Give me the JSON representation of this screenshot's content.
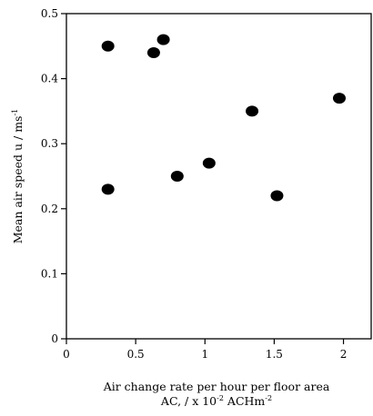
{
  "chart_data": {
    "type": "scatter",
    "title": "",
    "xlabel_line1": "Air change rate per hour per floor area",
    "xlabel_line2": "AC, / x 10",
    "xlabel_line2_sup": "-2",
    "xlabel_line2_unit": " ACHm",
    "xlabel_line2_unit_sup": "-2",
    "ylabel": "Mean air speed u / ms",
    "ylabel_sup": "-1",
    "xlim": [
      0,
      2.2
    ],
    "ylim": [
      0,
      0.5
    ],
    "xticks": [
      0,
      0.5,
      1,
      1.5,
      2
    ],
    "xtick_labels": [
      "0",
      "0.5",
      "1",
      "1.5",
      "2"
    ],
    "yticks": [
      0,
      0.1,
      0.2,
      0.3,
      0.4,
      0.5
    ],
    "ytick_labels": [
      "0",
      "0.1",
      "0.2",
      "0.3",
      "0.4",
      "0.5"
    ],
    "grid": false,
    "legend": false,
    "marker_color": "#000000",
    "points": [
      {
        "x": 0.3,
        "y": 0.45
      },
      {
        "x": 0.3,
        "y": 0.23
      },
      {
        "x": 0.63,
        "y": 0.44
      },
      {
        "x": 0.7,
        "y": 0.46
      },
      {
        "x": 0.8,
        "y": 0.25
      },
      {
        "x": 1.03,
        "y": 0.27
      },
      {
        "x": 1.34,
        "y": 0.35
      },
      {
        "x": 1.52,
        "y": 0.22
      },
      {
        "x": 1.97,
        "y": 0.37
      }
    ]
  }
}
